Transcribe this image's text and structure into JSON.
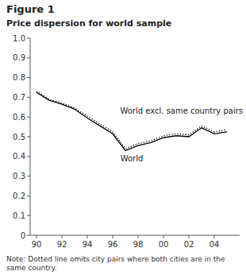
{
  "chart_data": {
    "type": "line",
    "title": "Figure 1",
    "subtitle": "Price dispersion for world sample",
    "note": "Note: Dotted line omits city pairs where both cities are in the same country.",
    "x": [
      90,
      91,
      92,
      93,
      94,
      95,
      96,
      97,
      98,
      99,
      100,
      101,
      102,
      103,
      104,
      105
    ],
    "series": [
      {
        "color": "#000000",
        "line_style": "solid",
        "values": [
          0.725,
          0.685,
          0.665,
          0.64,
          0.595,
          0.555,
          0.515,
          0.43,
          0.455,
          0.47,
          0.495,
          0.505,
          0.5,
          0.545,
          0.515,
          0.525
        ]
      },
      {
        "color": "#000000",
        "line_style": "dotted",
        "values": [
          0.73,
          0.69,
          0.67,
          0.645,
          0.605,
          0.565,
          0.525,
          0.44,
          0.465,
          0.48,
          0.505,
          0.515,
          0.51,
          0.555,
          0.525,
          0.535
        ]
      }
    ],
    "annotations": [
      {
        "text": "World",
        "x": 97.5,
        "y": 0.375
      },
      {
        "text": "World excl. same country pairs",
        "x": 99.5,
        "y": 0.615
      }
    ],
    "xlim": [
      89.5,
      106
    ],
    "xticks": [
      90,
      92,
      94,
      96,
      98,
      {
        "value": 100,
        "label": "00"
      },
      {
        "value": 102,
        "label": "02"
      },
      {
        "value": 104,
        "label": "04"
      }
    ],
    "ylim": [
      0,
      1.0
    ],
    "yticks": [
      0,
      0.1,
      0.2,
      0.3,
      0.4,
      0.5,
      0.6,
      0.7,
      0.8,
      0.9,
      {
        "value": 1.0,
        "label": "1.0"
      }
    ],
    "grid": false
  }
}
